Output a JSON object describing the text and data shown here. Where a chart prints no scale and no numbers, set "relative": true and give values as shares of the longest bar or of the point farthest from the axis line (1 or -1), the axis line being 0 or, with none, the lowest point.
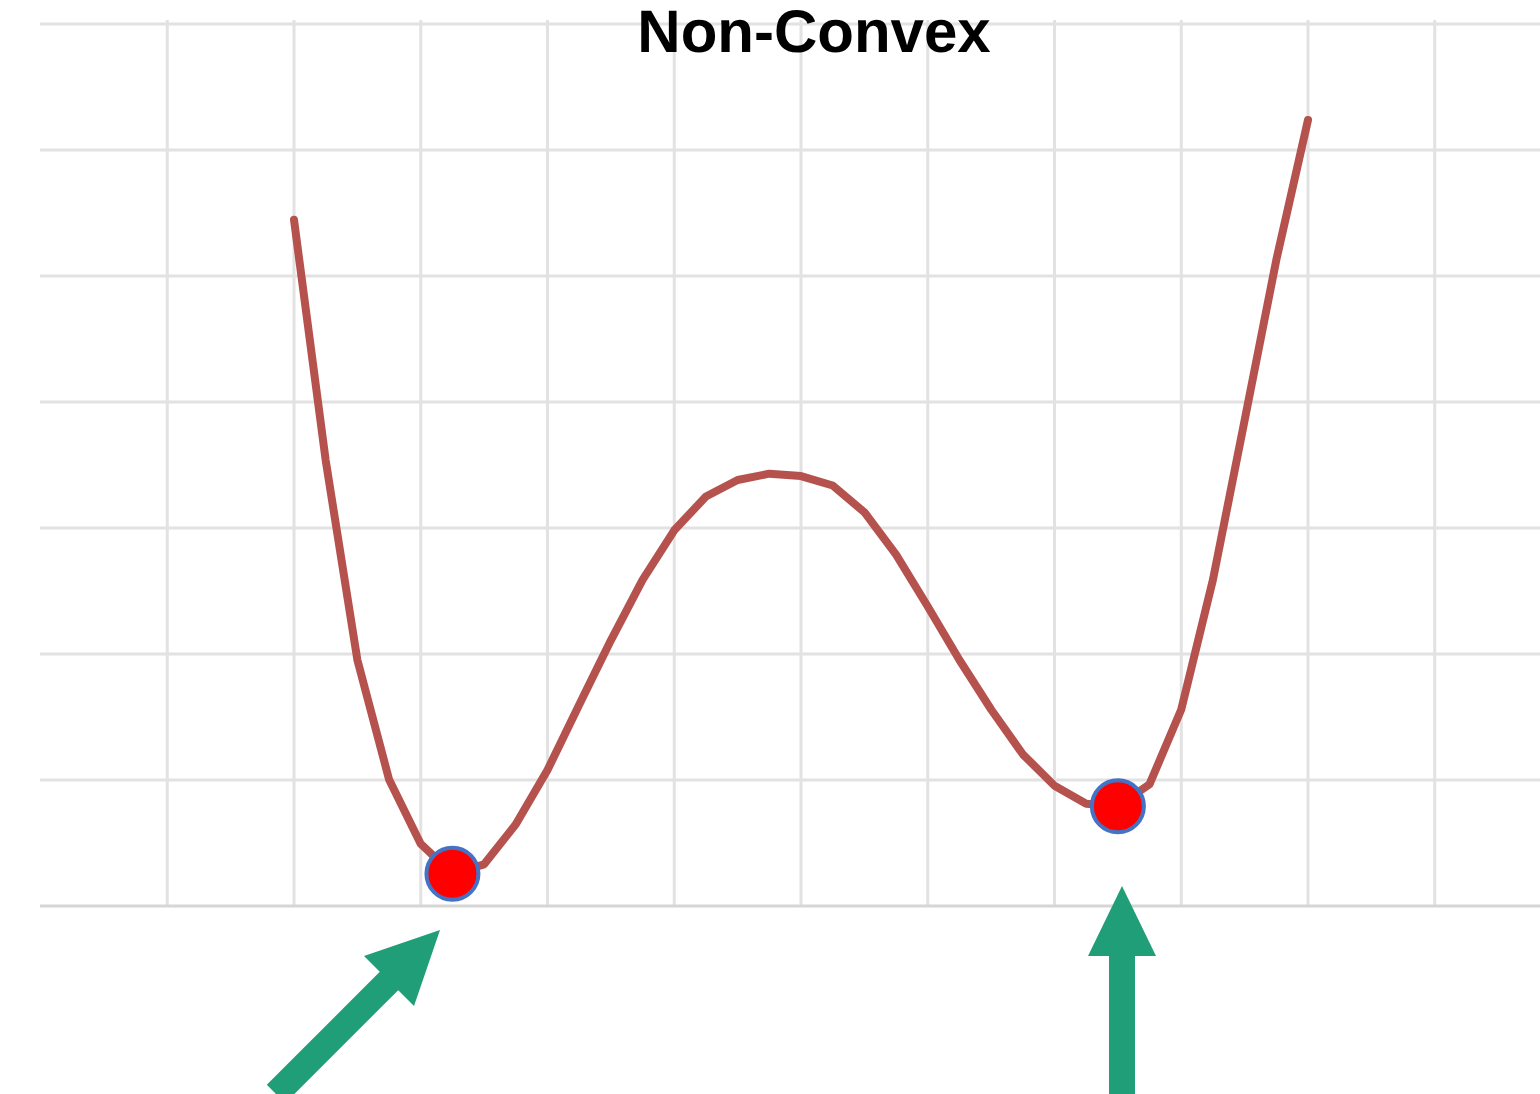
{
  "chart_data": {
    "type": "line",
    "title": "Non-Convex",
    "relative": true,
    "grid": true,
    "categories": [
      null,
      null,
      null,
      null,
      null,
      null,
      null,
      null,
      null,
      null,
      null,
      null,
      null,
      null,
      null,
      null,
      null,
      null,
      null,
      null,
      null,
      null,
      null,
      null,
      null,
      null,
      null,
      null,
      null,
      null,
      null,
      null,
      null
    ],
    "series": [
      {
        "color": "#b5524e",
        "values": [
          0.873,
          0.567,
          0.313,
          0.161,
          0.079,
          0.041,
          0.053,
          0.104,
          0.173,
          0.256,
          0.338,
          0.415,
          0.478,
          0.521,
          0.542,
          0.55,
          0.547,
          0.535,
          0.501,
          0.447,
          0.381,
          0.313,
          0.25,
          0.193,
          0.153,
          0.13,
          0.127,
          0.155,
          0.25,
          0.415,
          0.618,
          0.822,
          1
        ]
      }
    ]
  }
}
